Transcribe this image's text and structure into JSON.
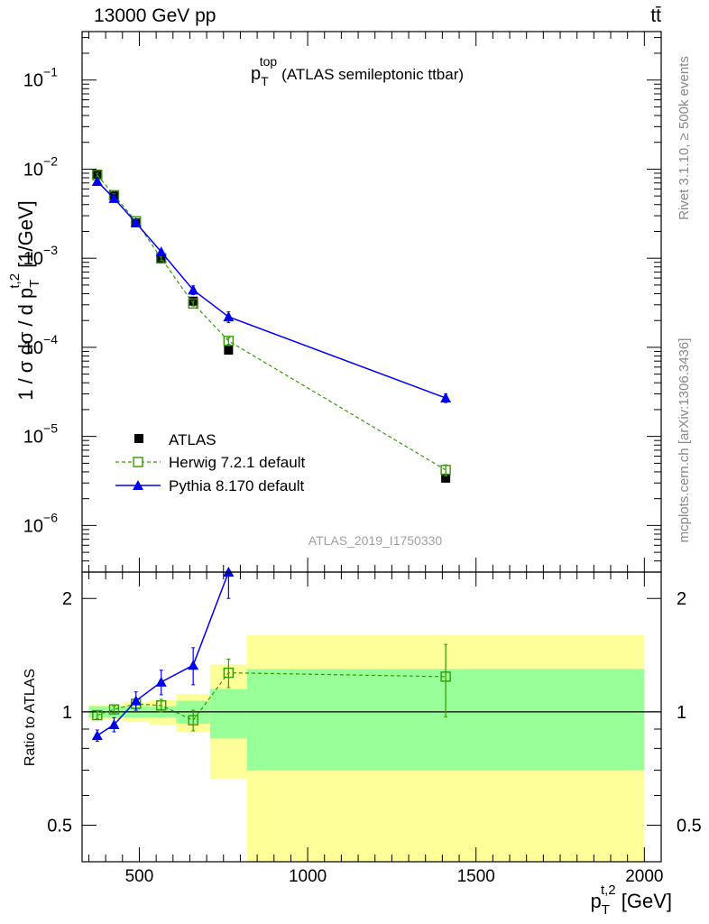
{
  "header": {
    "energy_label": "13000 GeV pp",
    "process_label": "tt̄"
  },
  "side_labels": {
    "rivet": "Rivet 3.1.10, ≥ 500k events",
    "mcplots": "mcplots.cern.ch [arXiv:1306.3436]"
  },
  "watermark": "ATLAS_2019_I1750330",
  "colors": {
    "data": "#000000",
    "herwig": "#339900",
    "pythia": "#0000ee",
    "band_inner": "#99ff99",
    "band_outer": "#ffff99"
  },
  "chart_data": [
    {
      "type": "scatter",
      "panel": "main",
      "title": "p_T^top (ATLAS semileptonic ttbar)",
      "title_main": "p",
      "title_sub": "T",
      "title_sup": "top",
      "title_rest": "(ATLAS semileptonic ttbar)",
      "ylabel": "1 / σ dσ / d p_T^{t,2} [1/GeV]",
      "ylabel_prefix": "1 / σ dσ / d p",
      "ylabel_sub": "T",
      "ylabel_sup": "t,2",
      "ylabel_suffix": " [1/GeV]",
      "yscale": "log",
      "ylim": [
        3e-07,
        0.35
      ],
      "xlim": [
        330,
        2050
      ],
      "y_ticks": [
        {
          "value": 1e-06,
          "base": "10",
          "exp": "−6"
        },
        {
          "value": 1e-05,
          "base": "10",
          "exp": "−5"
        },
        {
          "value": 0.0001,
          "base": "10",
          "exp": "−4"
        },
        {
          "value": 0.001,
          "base": "10",
          "exp": "−3"
        },
        {
          "value": 0.01,
          "base": "10",
          "exp": "−2"
        },
        {
          "value": 0.1,
          "base": "10",
          "exp": "−1"
        }
      ],
      "legend_position": "bottom-left",
      "series": [
        {
          "name": "ATLAS",
          "style": "data",
          "points": [
            {
              "x": 375,
              "y": 0.0088
            },
            {
              "x": 425,
              "y": 0.005
            },
            {
              "x": 490,
              "y": 0.0025
            },
            {
              "x": 565,
              "y": 0.00098
            },
            {
              "x": 660,
              "y": 0.00033
            },
            {
              "x": 765,
              "y": 9.3e-05
            },
            {
              "x": 1410,
              "y": 3.4e-06
            }
          ]
        },
        {
          "name": "Herwig 7.2.1 default",
          "style": "herwig",
          "points": [
            {
              "x": 375,
              "y": 0.0086,
              "err": 0.0004
            },
            {
              "x": 425,
              "y": 0.0051,
              "err": 0.0002
            },
            {
              "x": 490,
              "y": 0.0026,
              "err": 0.0001
            },
            {
              "x": 565,
              "y": 0.001,
              "err": 5e-05
            },
            {
              "x": 660,
              "y": 0.00031,
              "err": 2e-05
            },
            {
              "x": 765,
              "y": 0.000118,
              "err": 1e-05
            },
            {
              "x": 1410,
              "y": 4.2e-06,
              "err": 6e-07
            }
          ]
        },
        {
          "name": "Pythia 8.170 default",
          "style": "pythia",
          "points": [
            {
              "x": 375,
              "y": 0.0073,
              "err": 0.0003
            },
            {
              "x": 425,
              "y": 0.0047,
              "err": 0.0002
            },
            {
              "x": 490,
              "y": 0.0025,
              "err": 0.0001
            },
            {
              "x": 565,
              "y": 0.00118,
              "err": 7e-05
            },
            {
              "x": 660,
              "y": 0.00044,
              "err": 5e-05
            },
            {
              "x": 765,
              "y": 0.00022,
              "err": 3e-05
            },
            {
              "x": 1410,
              "y": 2.7e-05,
              "err": 3e-06
            }
          ]
        }
      ]
    },
    {
      "type": "scatter",
      "panel": "ratio",
      "ylabel": "Ratio to ATLAS",
      "xlabel": "p_T^{t,2} [GeV]",
      "xlabel_main": "p",
      "xlabel_sub": "T",
      "xlabel_sup": "t,2",
      "xlabel_suffix": " [GeV]",
      "yscale": "log",
      "ylim": [
        0.4,
        2.35
      ],
      "xlim": [
        330,
        2050
      ],
      "x_ticks": [
        500,
        1000,
        1500,
        2000
      ],
      "y_ticks": [
        0.5,
        1,
        2
      ],
      "reference_line": 1,
      "bands": [
        {
          "x0": 350,
          "x1": 400,
          "inner": [
            0.965,
            1.035
          ],
          "outer": [
            0.955,
            1.045
          ]
        },
        {
          "x0": 400,
          "x1": 450,
          "inner": [
            0.965,
            1.035
          ],
          "outer": [
            0.955,
            1.045
          ]
        },
        {
          "x0": 450,
          "x1": 530,
          "inner": [
            0.965,
            1.035
          ],
          "outer": [
            0.94,
            1.06
          ]
        },
        {
          "x0": 530,
          "x1": 610,
          "inner": [
            0.965,
            1.035
          ],
          "outer": [
            0.925,
            1.075
          ]
        },
        {
          "x0": 610,
          "x1": 710,
          "inner": [
            0.93,
            1.07
          ],
          "outer": [
            0.885,
            1.115
          ]
        },
        {
          "x0": 710,
          "x1": 820,
          "inner": [
            0.85,
            1.15
          ],
          "outer": [
            0.665,
            1.335
          ]
        },
        {
          "x0": 820,
          "x1": 2000,
          "inner": [
            0.7,
            1.3
          ],
          "outer": [
            0.4,
            1.6
          ]
        }
      ],
      "series": [
        {
          "name": "Herwig 7.2.1 default",
          "style": "herwig",
          "points": [
            {
              "x": 375,
              "y": 0.98,
              "err": 0.02
            },
            {
              "x": 425,
              "y": 1.015,
              "err": 0.02
            },
            {
              "x": 490,
              "y": 1.05,
              "err": 0.03
            },
            {
              "x": 565,
              "y": 1.04,
              "err": 0.04
            },
            {
              "x": 660,
              "y": 0.95,
              "err": 0.06
            },
            {
              "x": 765,
              "y": 1.27,
              "err": 0.11
            },
            {
              "x": 1410,
              "y": 1.24,
              "err": 0.27
            }
          ]
        },
        {
          "name": "Pythia 8.170 default",
          "style": "pythia",
          "points": [
            {
              "x": 375,
              "y": 0.865,
              "err": 0.03
            },
            {
              "x": 425,
              "y": 0.925,
              "err": 0.04
            },
            {
              "x": 490,
              "y": 1.07,
              "err": 0.06
            },
            {
              "x": 565,
              "y": 1.2,
              "err": 0.09
            },
            {
              "x": 660,
              "y": 1.33,
              "err": 0.15
            },
            {
              "x": 765,
              "y": 2.35,
              "err": 0.35
            }
          ]
        }
      ]
    }
  ]
}
